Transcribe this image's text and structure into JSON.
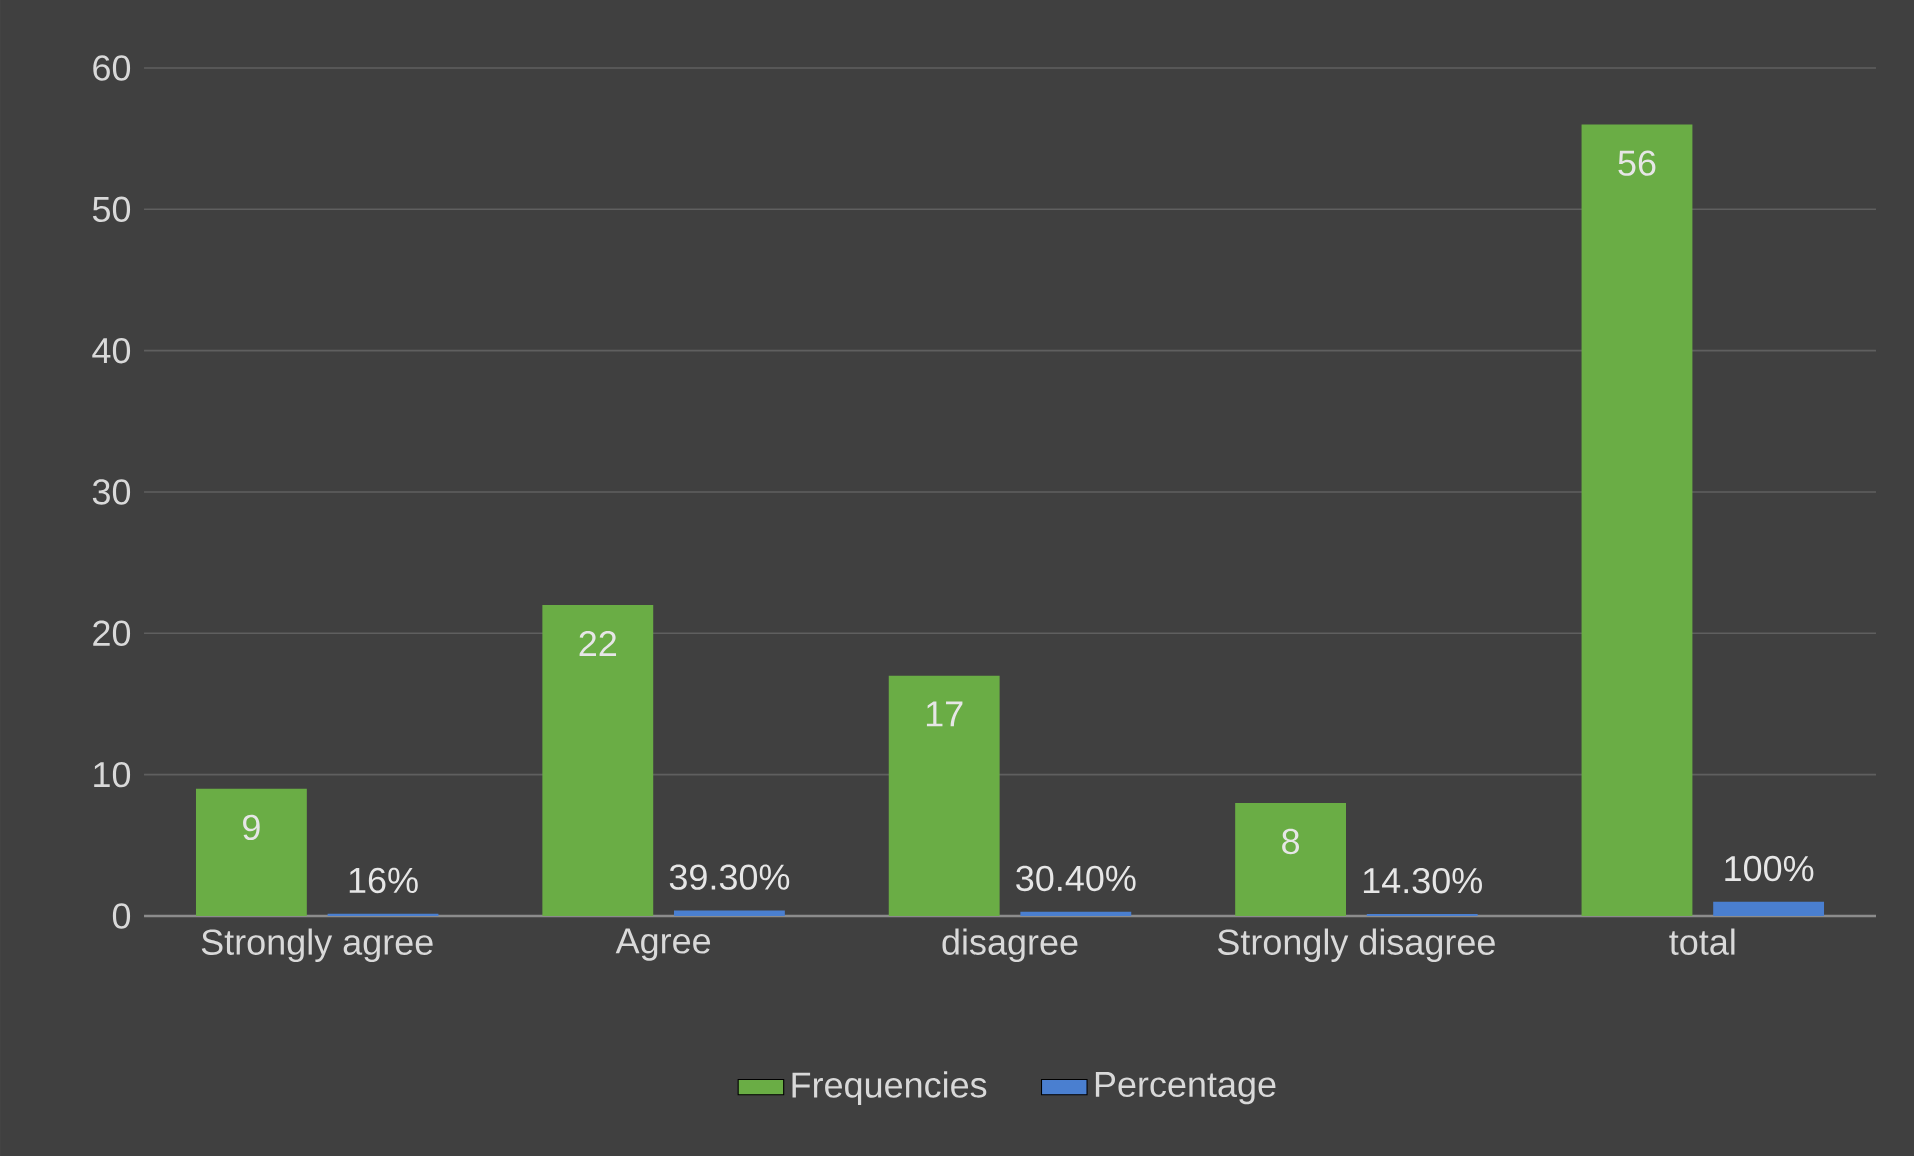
{
  "chart_data": {
    "type": "bar",
    "categories": [
      "Strongly agree",
      "Agree",
      "disagree",
      "Strongly disagree",
      "total"
    ],
    "series": [
      {
        "name": "Frequencies",
        "color": "#6aad45",
        "values": [
          9,
          22,
          17,
          8,
          56
        ],
        "value_labels": [
          "9",
          "22",
          "17",
          "8",
          "56"
        ]
      },
      {
        "name": "Percentage",
        "color": "#4a7fd0",
        "values": [
          0.16,
          0.393,
          0.304,
          0.143,
          1
        ],
        "value_labels": [
          "16%",
          "39.30%",
          "30.40%",
          "14.30%",
          "100%"
        ]
      }
    ],
    "ylim": [
      0,
      60
    ],
    "yticks": [
      0,
      10,
      20,
      30,
      40,
      50,
      60
    ],
    "grid": "y",
    "legend": "bottom"
  }
}
